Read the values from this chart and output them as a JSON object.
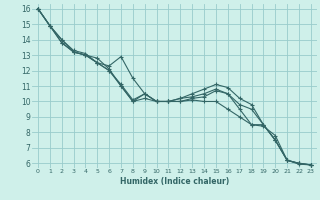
{
  "xlabel": "Humidex (Indice chaleur)",
  "bg_color": "#cff0ea",
  "grid_color": "#99cccc",
  "line_color": "#336666",
  "xlim": [
    -0.5,
    23.5
  ],
  "ylim": [
    5.7,
    16.3
  ],
  "xtick_labels": [
    "0",
    "1",
    "2",
    "3",
    "4",
    "5",
    "6",
    "7",
    "8",
    "9",
    "10",
    "11",
    "12",
    "13",
    "14",
    "15",
    "16",
    "17",
    "18",
    "19",
    "20",
    "21",
    "22",
    "23"
  ],
  "ytick_labels": [
    "6",
    "7",
    "8",
    "9",
    "10",
    "11",
    "12",
    "13",
    "14",
    "15",
    "16"
  ],
  "series": [
    [
      16.0,
      14.9,
      13.8,
      13.2,
      13.0,
      12.8,
      12.1,
      11.0,
      10.0,
      10.5,
      10.0,
      10.0,
      10.0,
      10.2,
      10.3,
      10.7,
      10.5,
      9.8,
      9.5,
      8.5,
      7.5,
      6.2,
      6.0,
      5.9
    ],
    [
      16.0,
      14.9,
      13.8,
      13.2,
      13.0,
      12.5,
      12.0,
      11.0,
      10.0,
      10.2,
      10.0,
      10.0,
      10.0,
      10.1,
      10.0,
      10.0,
      9.5,
      9.0,
      8.5,
      8.5,
      7.5,
      6.2,
      6.0,
      5.9
    ],
    [
      16.0,
      14.9,
      14.0,
      13.2,
      13.0,
      12.5,
      12.0,
      11.1,
      10.1,
      10.5,
      10.0,
      10.0,
      10.2,
      10.5,
      10.8,
      11.1,
      10.9,
      10.2,
      9.8,
      8.5,
      7.5,
      6.2,
      6.0,
      5.9
    ],
    [
      16.0,
      14.9,
      14.0,
      13.3,
      13.1,
      12.5,
      12.3,
      12.9,
      11.5,
      10.5,
      10.0,
      10.0,
      10.2,
      10.3,
      10.5,
      10.8,
      10.5,
      9.5,
      8.5,
      8.4,
      7.8,
      6.2,
      5.95,
      5.9
    ]
  ]
}
